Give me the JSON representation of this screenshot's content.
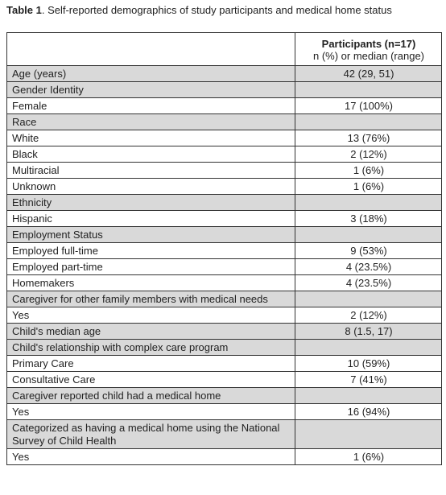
{
  "caption": {
    "label": "Table 1",
    "text": ". Self-reported demographics of study participants and medical home status"
  },
  "table": {
    "header": {
      "title": "Participants (n=17)",
      "subtitle": "n (%) or median (range)"
    },
    "rows": [
      {
        "label": "Age (years)",
        "value": "42 (29, 51)",
        "shaded": true
      },
      {
        "label": "Gender Identity",
        "shaded": true
      },
      {
        "label": "Female",
        "value": "17 (100%)",
        "shaded": false
      },
      {
        "label": "Race",
        "shaded": true
      },
      {
        "label": "White",
        "value": "13 (76%)",
        "shaded": false
      },
      {
        "label": "Black",
        "value": "2 (12%)",
        "shaded": false
      },
      {
        "label": "Multiracial",
        "value": "1 (6%)",
        "shaded": false
      },
      {
        "label": "Unknown",
        "value": "1 (6%)",
        "shaded": false
      },
      {
        "label": "Ethnicity",
        "shaded": true
      },
      {
        "label": "Hispanic",
        "value": "3 (18%)",
        "shaded": false
      },
      {
        "label": "Employment Status",
        "shaded": true
      },
      {
        "label": "Employed full-time",
        "value": "9 (53%)",
        "shaded": false
      },
      {
        "label": "Employed part-time",
        "value": "4 (23.5%)",
        "shaded": false
      },
      {
        "label": "Homemakers",
        "value": "4 (23.5%)",
        "shaded": false
      },
      {
        "label": "Caregiver for other family members with medical needs",
        "shaded": true
      },
      {
        "label": "Yes",
        "value": "2 (12%)",
        "shaded": false
      },
      {
        "label": "Child's median age",
        "value": "8 (1.5, 17)",
        "shaded": true
      },
      {
        "label": "Child's relationship with complex care program",
        "shaded": true
      },
      {
        "label": "Primary Care",
        "value": "10 (59%)",
        "shaded": false
      },
      {
        "label": "Consultative Care",
        "value": "7 (41%)",
        "shaded": false
      },
      {
        "label": "Caregiver reported child had a medical home",
        "shaded": true
      },
      {
        "label": "Yes",
        "value": "16 (94%)",
        "shaded": false
      },
      {
        "label": "Categorized as having a medical home using the National Survey of Child Health",
        "shaded": true
      },
      {
        "label": "Yes",
        "value": "1 (6%)",
        "shaded": false
      }
    ]
  }
}
